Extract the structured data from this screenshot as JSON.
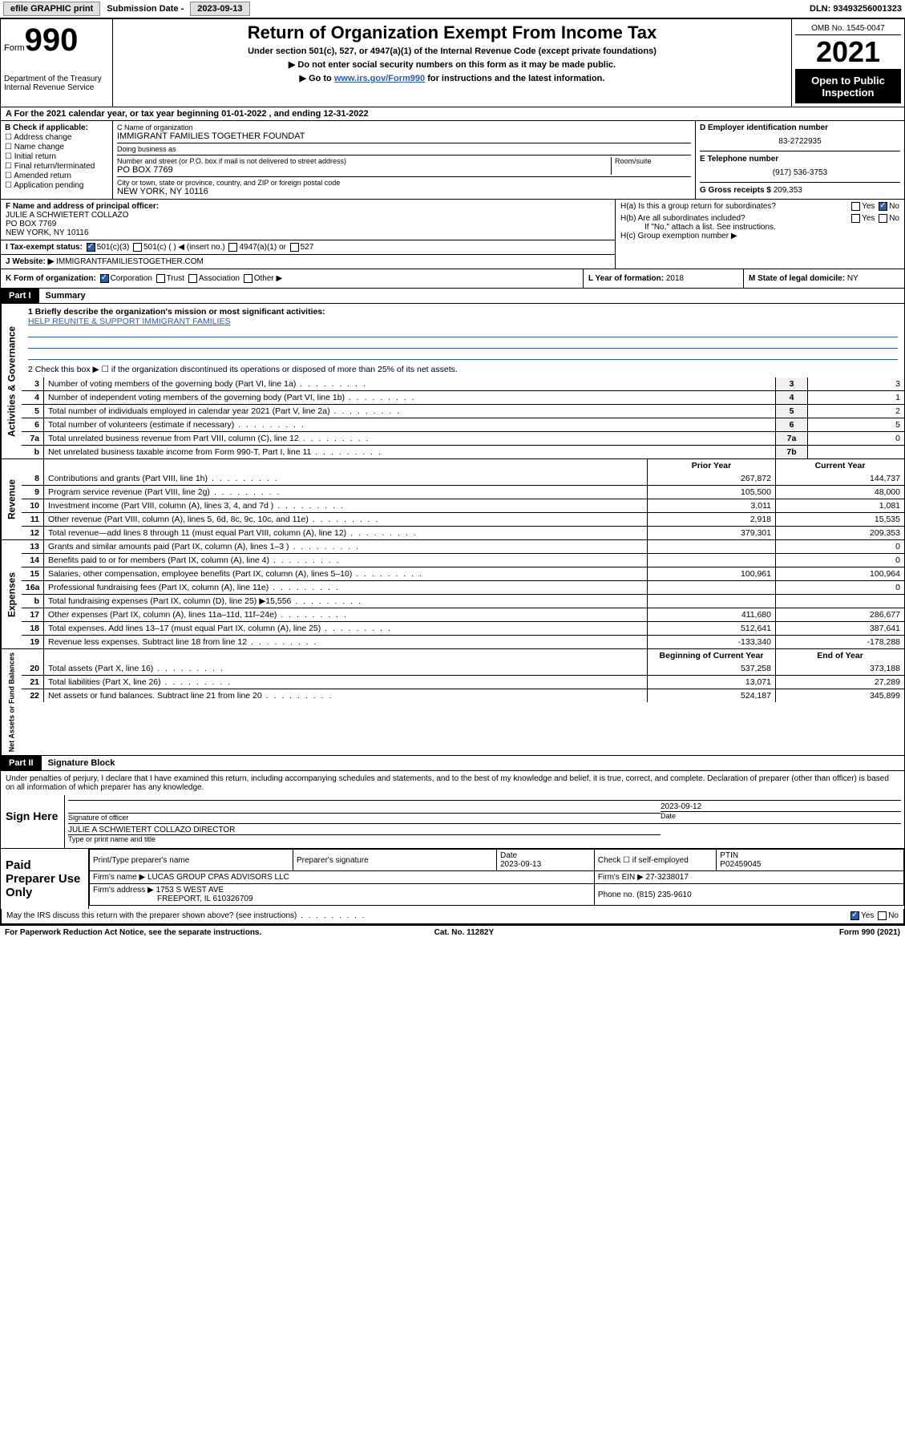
{
  "topbar": {
    "efile": "efile GRAPHIC print",
    "submission_label": "Submission Date - ",
    "submission_date": "2023-09-13",
    "dln_label": "DLN: ",
    "dln": "93493256001323"
  },
  "header": {
    "form_prefix": "Form",
    "form_number": "990",
    "dept": "Department of the Treasury\nInternal Revenue Service",
    "title": "Return of Organization Exempt From Income Tax",
    "subtitle": "Under section 501(c), 527, or 4947(a)(1) of the Internal Revenue Code (except private foundations)",
    "note1": "▶ Do not enter social security numbers on this form as it may be made public.",
    "note2_pre": "▶ Go to ",
    "note2_link": "www.irs.gov/Form990",
    "note2_post": " for instructions and the latest information.",
    "omb": "OMB No. 1545-0047",
    "year": "2021",
    "open": "Open to Public Inspection"
  },
  "row_a": "A For the 2021 calendar year, or tax year beginning 01-01-2022   , and ending 12-31-2022",
  "col_b": {
    "label": "B Check if applicable:",
    "opts": [
      "Address change",
      "Name change",
      "Initial return",
      "Final return/terminated",
      "Amended return",
      "Application pending"
    ]
  },
  "col_c": {
    "name_lbl": "C Name of organization",
    "name": "IMMIGRANT FAMILIES TOGETHER FOUNDAT",
    "dba_lbl": "Doing business as",
    "dba": "",
    "addr_lbl": "Number and street (or P.O. box if mail is not delivered to street address)",
    "room_lbl": "Room/suite",
    "addr": "PO BOX 7769",
    "city_lbl": "City or town, state or province, country, and ZIP or foreign postal code",
    "city": "NEW YORK, NY  10116"
  },
  "col_d": {
    "ein_lbl": "D Employer identification number",
    "ein": "83-2722935",
    "tel_lbl": "E Telephone number",
    "tel": "(917) 536-3753",
    "gross_lbl": "G Gross receipts $ ",
    "gross": "209,353"
  },
  "section_f": {
    "lbl": "F Name and address of principal officer:",
    "name": "JULIE A SCHWIETERT COLLAZO",
    "addr1": "PO BOX 7769",
    "addr2": "NEW YORK, NY  10116"
  },
  "section_h": {
    "ha": "H(a)  Is this a group return for subordinates?",
    "hb": "H(b)  Are all subordinates included?",
    "hb_note": "If \"No,\" attach a list. See instructions.",
    "hc": "H(c)  Group exemption number ▶",
    "yes": "Yes",
    "no": "No"
  },
  "section_i": {
    "lbl": "I   Tax-exempt status:",
    "o1": "501(c)(3)",
    "o2": "501(c) (  ) ◀ (insert no.)",
    "o3": "4947(a)(1) or",
    "o4": "527"
  },
  "section_j": {
    "lbl": "J   Website: ▶",
    "val": "IMMIGRANTFAMILIESTOGETHER.COM"
  },
  "section_k": {
    "lbl": "K Form of organization:",
    "opts": [
      "Corporation",
      "Trust",
      "Association",
      "Other ▶"
    ]
  },
  "section_l": {
    "lbl": "L Year of formation: ",
    "val": "2018"
  },
  "section_m": {
    "lbl": "M State of legal domicile: ",
    "val": "NY"
  },
  "part1": {
    "label": "Part I",
    "title": "Summary",
    "l1_lbl": "1  Briefly describe the organization's mission or most significant activities:",
    "l1_val": "HELP REUNITE & SUPPORT IMMIGRANT FAMILIES",
    "l2": "2   Check this box ▶ ☐  if the organization discontinued its operations or disposed of more than 25% of its net assets.",
    "governance_label": "Activities & Governance",
    "revenue_label": "Revenue",
    "expenses_label": "Expenses",
    "netassets_label": "Net Assets or Fund Balances",
    "lines_gov": [
      {
        "n": "3",
        "t": "Number of voting members of the governing body (Part VI, line 1a)",
        "box": "3",
        "v": "3"
      },
      {
        "n": "4",
        "t": "Number of independent voting members of the governing body (Part VI, line 1b)",
        "box": "4",
        "v": "1"
      },
      {
        "n": "5",
        "t": "Total number of individuals employed in calendar year 2021 (Part V, line 2a)",
        "box": "5",
        "v": "2"
      },
      {
        "n": "6",
        "t": "Total number of volunteers (estimate if necessary)",
        "box": "6",
        "v": "5"
      },
      {
        "n": "7a",
        "t": "Total unrelated business revenue from Part VIII, column (C), line 12",
        "box": "7a",
        "v": "0"
      },
      {
        "n": "b",
        "t": "Net unrelated business taxable income from Form 990-T, Part I, line 11",
        "box": "7b",
        "v": ""
      }
    ],
    "cols": {
      "prior": "Prior Year",
      "current": "Current Year",
      "begin": "Beginning of Current Year",
      "end": "End of Year"
    },
    "lines_rev": [
      {
        "n": "8",
        "t": "Contributions and grants (Part VIII, line 1h)",
        "p": "267,872",
        "c": "144,737"
      },
      {
        "n": "9",
        "t": "Program service revenue (Part VIII, line 2g)",
        "p": "105,500",
        "c": "48,000"
      },
      {
        "n": "10",
        "t": "Investment income (Part VIII, column (A), lines 3, 4, and 7d )",
        "p": "3,011",
        "c": "1,081"
      },
      {
        "n": "11",
        "t": "Other revenue (Part VIII, column (A), lines 5, 6d, 8c, 9c, 10c, and 11e)",
        "p": "2,918",
        "c": "15,535"
      },
      {
        "n": "12",
        "t": "Total revenue—add lines 8 through 11 (must equal Part VIII, column (A), line 12)",
        "p": "379,301",
        "c": "209,353"
      }
    ],
    "lines_exp": [
      {
        "n": "13",
        "t": "Grants and similar amounts paid (Part IX, column (A), lines 1–3 )",
        "p": "",
        "c": "0"
      },
      {
        "n": "14",
        "t": "Benefits paid to or for members (Part IX, column (A), line 4)",
        "p": "",
        "c": "0"
      },
      {
        "n": "15",
        "t": "Salaries, other compensation, employee benefits (Part IX, column (A), lines 5–10)",
        "p": "100,961",
        "c": "100,964"
      },
      {
        "n": "16a",
        "t": "Professional fundraising fees (Part IX, column (A), line 11e)",
        "p": "",
        "c": "0"
      },
      {
        "n": "b",
        "t": "Total fundraising expenses (Part IX, column (D), line 25) ▶15,556",
        "p": "",
        "c": ""
      },
      {
        "n": "17",
        "t": "Other expenses (Part IX, column (A), lines 11a–11d, 11f–24e)",
        "p": "411,680",
        "c": "286,677"
      },
      {
        "n": "18",
        "t": "Total expenses. Add lines 13–17 (must equal Part IX, column (A), line 25)",
        "p": "512,641",
        "c": "387,641"
      },
      {
        "n": "19",
        "t": "Revenue less expenses. Subtract line 18 from line 12",
        "p": "-133,340",
        "c": "-178,288"
      }
    ],
    "lines_net": [
      {
        "n": "20",
        "t": "Total assets (Part X, line 16)",
        "p": "537,258",
        "c": "373,188"
      },
      {
        "n": "21",
        "t": "Total liabilities (Part X, line 26)",
        "p": "13,071",
        "c": "27,289"
      },
      {
        "n": "22",
        "t": "Net assets or fund balances. Subtract line 21 from line 20",
        "p": "524,187",
        "c": "345,899"
      }
    ]
  },
  "part2": {
    "label": "Part II",
    "title": "Signature Block",
    "declaration": "Under penalties of perjury, I declare that I have examined this return, including accompanying schedules and statements, and to the best of my knowledge and belief, it is true, correct, and complete. Declaration of preparer (other than officer) is based on all information of which preparer has any knowledge.",
    "sign_here": "Sign Here",
    "sig_officer": "Signature of officer",
    "sig_date": "2023-09-12",
    "date_lbl": "Date",
    "officer_name": "JULIE A SCHWIETERT COLLAZO  DIRECTOR",
    "name_title_lbl": "Type or print name and title",
    "paid_lbl": "Paid Preparer Use Only",
    "prep_name_lbl": "Print/Type preparer's name",
    "prep_sig_lbl": "Preparer's signature",
    "prep_date_lbl": "Date",
    "prep_date": "2023-09-13",
    "self_emp": "Check ☐ if self-employed",
    "ptin_lbl": "PTIN",
    "ptin": "P02459045",
    "firm_name_lbl": "Firm's name    ▶ ",
    "firm_name": "LUCAS GROUP CPAS ADVISORS LLC",
    "firm_ein_lbl": "Firm's EIN ▶ ",
    "firm_ein": "27-3238017",
    "firm_addr_lbl": "Firm's address ▶ ",
    "firm_addr1": "1753 S WEST AVE",
    "firm_addr2": "FREEPORT, IL  610326709",
    "phone_lbl": "Phone no. ",
    "phone": "(815) 235-9610",
    "discuss": "May the IRS discuss this return with the preparer shown above? (see instructions)",
    "yes": "Yes",
    "no": "No"
  },
  "footer": {
    "pra": "For Paperwork Reduction Act Notice, see the separate instructions.",
    "cat": "Cat. No. 11282Y",
    "form": "Form 990 (2021)"
  },
  "colors": {
    "link": "#2a5db0",
    "checked": "#2a5db0"
  }
}
